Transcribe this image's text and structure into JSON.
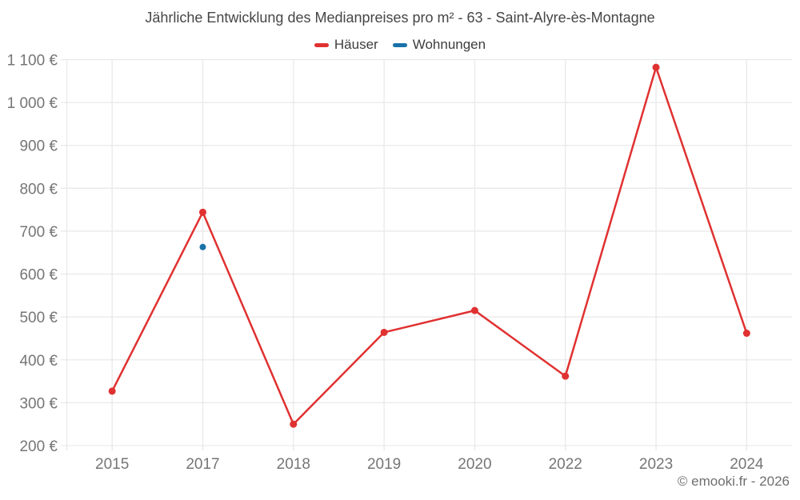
{
  "footer": "© emooki.fr - 2026",
  "colors": {
    "haeuser": "#e03131",
    "wohnungen": "#1971a8",
    "grid": "#e9e9e9",
    "title_text": "#464646",
    "axis_text": "#767676",
    "footer_text": "#6f6f6f",
    "background": "#ffffff"
  },
  "chart_data": {
    "type": "line",
    "title": "Jährliche Entwicklung des Medianpreises pro m² - 63 - Saint-Alyre-ès-Montagne",
    "categories": [
      "2015",
      "2017",
      "2018",
      "2019",
      "2020",
      "2022",
      "2023",
      "2024"
    ],
    "series": [
      {
        "id": "haeuser",
        "name": "Häuser",
        "color": "#e03131",
        "marker_radius": 4.5,
        "values": [
          327,
          744,
          250,
          464,
          515,
          362,
          1082,
          462
        ]
      },
      {
        "id": "wohnungen",
        "name": "Wohnungen",
        "color": "#1971a8",
        "marker_radius": 4,
        "values": [
          null,
          663,
          null,
          null,
          null,
          null,
          null,
          null
        ]
      }
    ],
    "xlabel": "",
    "ylabel": "",
    "ylim": [
      200,
      1100
    ],
    "ytick_step": 100,
    "ytick_labels": [
      "200 €",
      "300 €",
      "400 €",
      "500 €",
      "600 €",
      "700 €",
      "800 €",
      "900 €",
      "1 000 €",
      "1 100 €"
    ],
    "grid": true,
    "legend_position": "top"
  }
}
